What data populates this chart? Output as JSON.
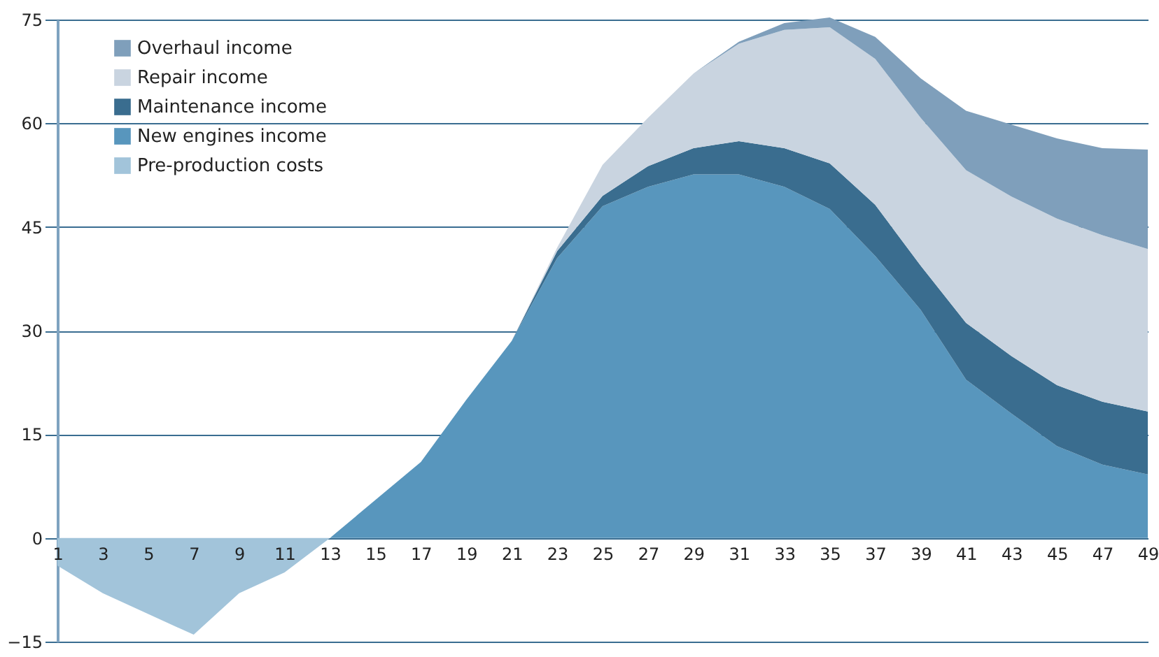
{
  "chart_data": {
    "type": "area",
    "stacked": true,
    "x": [
      1,
      3,
      5,
      7,
      9,
      11,
      13,
      15,
      17,
      19,
      21,
      23,
      25,
      27,
      29,
      31,
      33,
      35,
      37,
      39,
      41,
      43,
      45,
      47,
      49
    ],
    "series": [
      {
        "name": "New engines income",
        "color": "#5896bd",
        "values": [
          0,
          0,
          0,
          0,
          0,
          0,
          0,
          5.5,
          11,
          20,
          28.5,
          40.5,
          48,
          50.8,
          52.6,
          52.6,
          50.8,
          47.6,
          40.8,
          33,
          22.9,
          18,
          13.3,
          10.6,
          9.2
        ]
      },
      {
        "name": "Maintenance income",
        "color": "#3a6d8f",
        "values": [
          0,
          0,
          0,
          0,
          0,
          0,
          0,
          0,
          0,
          0,
          0,
          1,
          1.5,
          3,
          3.8,
          4.8,
          5.6,
          6.6,
          7.4,
          6.4,
          8.2,
          8.3,
          8.8,
          9.1,
          9.1
        ]
      },
      {
        "name": "Repair income",
        "color": "#c9d4e0",
        "values": [
          0,
          0,
          0,
          0,
          0,
          0,
          0,
          0,
          0,
          0,
          0,
          0.5,
          4.5,
          7,
          10.8,
          14.1,
          17.1,
          19.7,
          21.1,
          21.4,
          22.1,
          23.1,
          24.1,
          24.1,
          23.5
        ]
      },
      {
        "name": "Overhaul income",
        "color": "#7f9fbb",
        "values": [
          0,
          0,
          0,
          0,
          0,
          0,
          0,
          0,
          0,
          0,
          0,
          0,
          0,
          0,
          0,
          0.3,
          1,
          1.4,
          3.2,
          5.7,
          8.6,
          10.4,
          11.6,
          12.6,
          14.4
        ]
      },
      {
        "name": "Pre-production costs",
        "color": "#a2c4da",
        "values": [
          -4,
          -8,
          -11,
          -14,
          -8,
          -5,
          0,
          0,
          0,
          0,
          0,
          0,
          0,
          0,
          0,
          0,
          0,
          0,
          0,
          0,
          0,
          0,
          0,
          0,
          0
        ]
      }
    ],
    "xlim": [
      1,
      49
    ],
    "xticks": [
      1,
      3,
      5,
      7,
      9,
      11,
      13,
      15,
      17,
      19,
      21,
      23,
      25,
      27,
      29,
      31,
      33,
      35,
      37,
      39,
      41,
      43,
      45,
      47,
      49
    ],
    "ylim": [
      -15,
      75
    ],
    "yticks": [
      -15,
      0,
      15,
      30,
      45,
      60,
      75
    ],
    "grid": "y",
    "legend": "top left"
  }
}
